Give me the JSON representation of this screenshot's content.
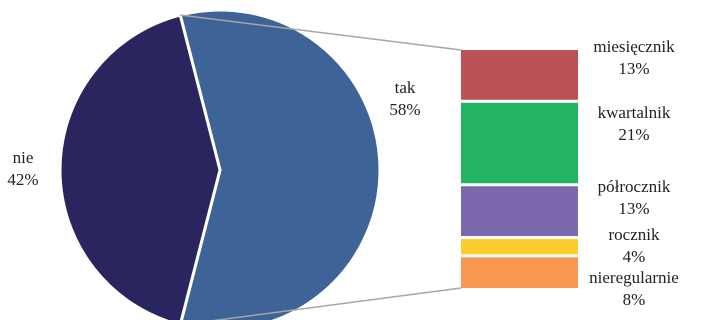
{
  "chart_data": {
    "type": "bar-of-pie",
    "pie": {
      "slices": [
        {
          "name": "tak",
          "value": 58,
          "label": "58%",
          "color": "#3E6497"
        },
        {
          "name": "nie",
          "value": 42,
          "label": "42%",
          "color": "#29255F"
        }
      ]
    },
    "bar": {
      "parent_slice": "tak",
      "segments": [
        {
          "name": "miesięcznik",
          "value": 13,
          "label": "13%",
          "color": "#BB5257"
        },
        {
          "name": "kwartalnik",
          "value": 21,
          "label": "21%",
          "color": "#22B463"
        },
        {
          "name": "półrocznik",
          "value": 13,
          "label": "13%",
          "color": "#7C68AE"
        },
        {
          "name": "rocznik",
          "value": 4,
          "label": "4%",
          "color": "#FDCD2F"
        },
        {
          "name": "nieregularnie",
          "value": 8,
          "label": "8%",
          "color": "#F79751"
        }
      ]
    },
    "connector_color": "#A6A6A6",
    "legend": "none"
  }
}
